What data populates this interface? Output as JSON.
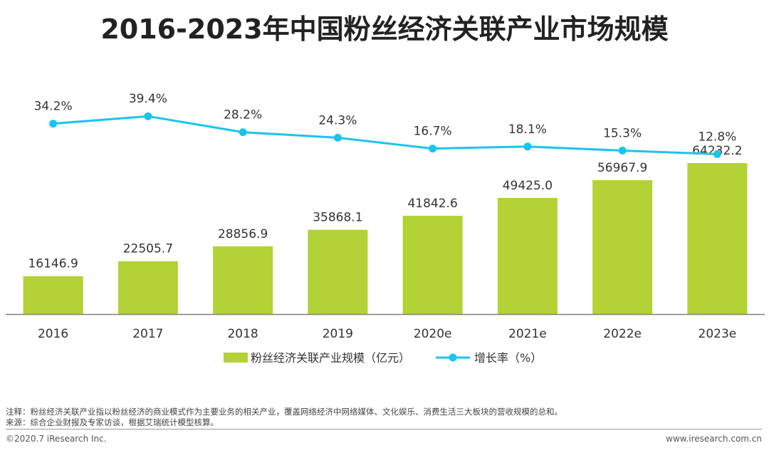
{
  "title": "2016-2023年中国粉丝经济关联产业市场规模",
  "chart_data": {
    "type": "bar",
    "categories": [
      "2016",
      "2017",
      "2018",
      "2019",
      "2020e",
      "2021e",
      "2022e",
      "2023e"
    ],
    "series": [
      {
        "name": "粉丝经济关联产业规模（亿元）",
        "type": "bar",
        "values": [
          16146.9,
          22505.7,
          28856.9,
          35868.1,
          41842.6,
          49425.0,
          56967.9,
          64232.2
        ],
        "labels": [
          "16146.9",
          "22505.7",
          "28856.9",
          "35868.1",
          "41842.6",
          "49425.0",
          "56967.9",
          "64232.2"
        ],
        "color": "#B2D235"
      },
      {
        "name": "增长率（%）",
        "type": "line",
        "values": [
          34.2,
          39.4,
          28.2,
          24.3,
          16.7,
          18.1,
          15.3,
          12.8
        ],
        "labels": [
          "34.2%",
          "39.4%",
          "28.2%",
          "24.3%",
          "16.7%",
          "18.1%",
          "15.3%",
          "12.8%"
        ],
        "color": "#1BC4EE"
      }
    ],
    "legend_position": "bottom-center",
    "grid": false
  },
  "footer": {
    "note": "注释：粉丝经济关联产业指以粉丝经济的商业模式作为主要业务的相关产业，覆盖网络经济中网络媒体、文化娱乐、消费生活三大板块的营收规模的总和。",
    "source": "来源：综合企业财报及专家访谈，根据艾瑞统计模型核算。",
    "copyright": "©2020.7 iResearch Inc.",
    "website": "www.iresearch.com.cn"
  }
}
